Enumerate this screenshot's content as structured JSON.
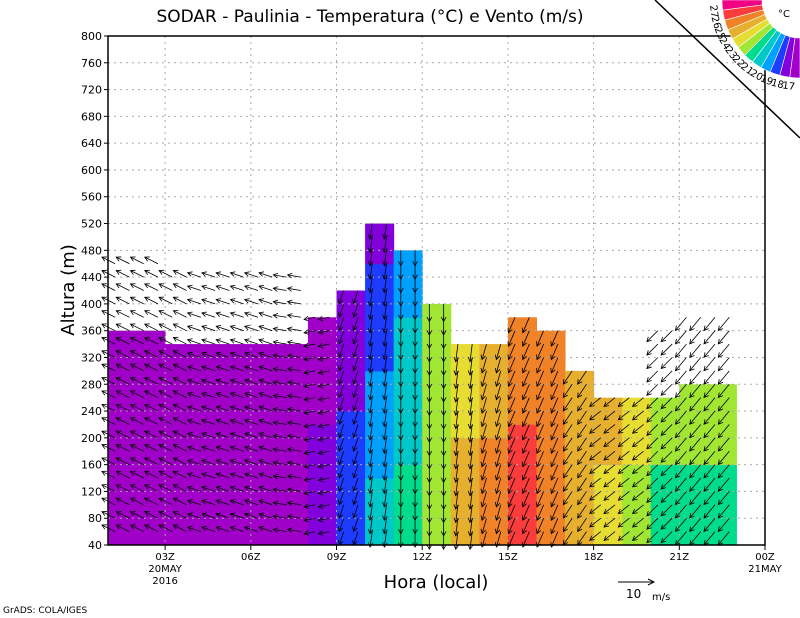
{
  "chart_data": {
    "type": "heatmap",
    "title": "SODAR - Paulinia - Temperatura (°C) e Vento (m/s)",
    "xlabel": "Hora (local)",
    "ylabel": "Altura (m)",
    "ylim": [
      40,
      800
    ],
    "xlim_hours": [
      1,
      24
    ],
    "y_ticks": [
      "40",
      "80",
      "120",
      "160",
      "200",
      "240",
      "280",
      "320",
      "360",
      "400",
      "440",
      "480",
      "520",
      "560",
      "600",
      "640",
      "680",
      "720",
      "760",
      "800"
    ],
    "x_ticks": [
      {
        "hour": 3,
        "label": "03Z",
        "sub1": "20MAY",
        "sub2": "2016"
      },
      {
        "hour": 6,
        "label": "06Z"
      },
      {
        "hour": 9,
        "label": "09Z"
      },
      {
        "hour": 12,
        "label": "12Z"
      },
      {
        "hour": 15,
        "label": "15Z"
      },
      {
        "hour": 18,
        "label": "18Z"
      },
      {
        "hour": 21,
        "label": "21Z"
      },
      {
        "hour": 24,
        "label": "00Z",
        "sub1": "21MAY"
      }
    ],
    "colorbar": {
      "unit": "°C",
      "levels": [
        "17",
        "18",
        "19",
        "20",
        "21",
        "22",
        "23",
        "24",
        "25",
        "26",
        "27"
      ],
      "colors": [
        "#a000c8",
        "#8200dc",
        "#1e3cff",
        "#00a0ff",
        "#00c8c8",
        "#00dc8c",
        "#a0e632",
        "#e6dc32",
        "#e6af2d",
        "#f08228",
        "#fa3c3c",
        "#f00082"
      ]
    },
    "columns": [
      {
        "hour": 1,
        "top": 360,
        "temp_bottom": 16.5,
        "temp_top": 16.5,
        "wind": [
          -6,
          3
        ]
      },
      {
        "hour": 2,
        "top": 360,
        "temp_bottom": 16.5,
        "temp_top": 16.5,
        "wind": [
          -6,
          3
        ]
      },
      {
        "hour": 3,
        "top": 340,
        "temp_bottom": 16.5,
        "temp_top": 16.5,
        "wind": [
          -6,
          3
        ]
      },
      {
        "hour": 4,
        "top": 340,
        "temp_bottom": 16.5,
        "temp_top": 16.5,
        "wind": [
          -6,
          2
        ]
      },
      {
        "hour": 5,
        "top": 340,
        "temp_bottom": 16.5,
        "temp_top": 16.5,
        "wind": [
          -6,
          2
        ]
      },
      {
        "hour": 6,
        "top": 340,
        "temp_bottom": 16.5,
        "temp_top": 16.5,
        "wind": [
          -6,
          2
        ]
      },
      {
        "hour": 7,
        "top": 340,
        "temp_bottom": 16.5,
        "temp_top": 16.5,
        "wind": [
          -6,
          1
        ]
      },
      {
        "hour": 8,
        "top": 380,
        "temp_bottom": 17.5,
        "temp_top": 16.5,
        "wind": [
          -5,
          -1
        ]
      },
      {
        "hour": 9,
        "top": 420,
        "temp_bottom": 18.5,
        "temp_top": 17.5,
        "wind": [
          -2,
          -6
        ]
      },
      {
        "hour": 10,
        "top": 520,
        "temp_bottom": 20.5,
        "temp_top": 17.5,
        "wind": [
          -1,
          -7
        ]
      },
      {
        "hour": 11,
        "top": 480,
        "temp_bottom": 21.5,
        "temp_top": 19.5,
        "wind": [
          0,
          -7
        ]
      },
      {
        "hour": 12,
        "top": 400,
        "temp_bottom": 22.5,
        "temp_top": 22.2,
        "wind": [
          0,
          -8
        ]
      },
      {
        "hour": 13,
        "top": 340,
        "temp_bottom": 24.5,
        "temp_top": 23.5,
        "wind": [
          -1,
          -8
        ]
      },
      {
        "hour": 14,
        "top": 340,
        "temp_bottom": 25.5,
        "temp_top": 24.5,
        "wind": [
          -2,
          -7
        ]
      },
      {
        "hour": 15,
        "top": 380,
        "temp_bottom": 26.5,
        "temp_top": 25.5,
        "wind": [
          -3,
          -7
        ]
      },
      {
        "hour": 16,
        "top": 360,
        "temp_bottom": 25.5,
        "temp_top": 25.5,
        "wind": [
          -3,
          -7
        ]
      },
      {
        "hour": 17,
        "top": 300,
        "temp_bottom": 24.5,
        "temp_top": 24.5,
        "wind": [
          -4,
          -6
        ]
      },
      {
        "hour": 18,
        "top": 260,
        "temp_bottom": 23.5,
        "temp_top": 24.5,
        "wind": [
          -5,
          -4
        ]
      },
      {
        "hour": 19,
        "top": 260,
        "temp_bottom": 22.5,
        "temp_top": 23.5,
        "wind": [
          -5,
          -4
        ]
      },
      {
        "hour": 20,
        "top": 260,
        "temp_bottom": 21.5,
        "temp_top": 22.5,
        "wind": [
          -5,
          -5
        ]
      },
      {
        "hour": 21,
        "top": 280,
        "temp_bottom": 21.5,
        "temp_top": 22.5,
        "wind": [
          -5,
          -6
        ]
      },
      {
        "hour": 22,
        "top": 280,
        "temp_bottom": 21.5,
        "temp_top": 22.5,
        "wind": [
          -5,
          -6
        ]
      }
    ],
    "wind_reference": {
      "speed": "10",
      "unit": "m/s"
    }
  },
  "footer": "GrADS: COLA/IGES"
}
